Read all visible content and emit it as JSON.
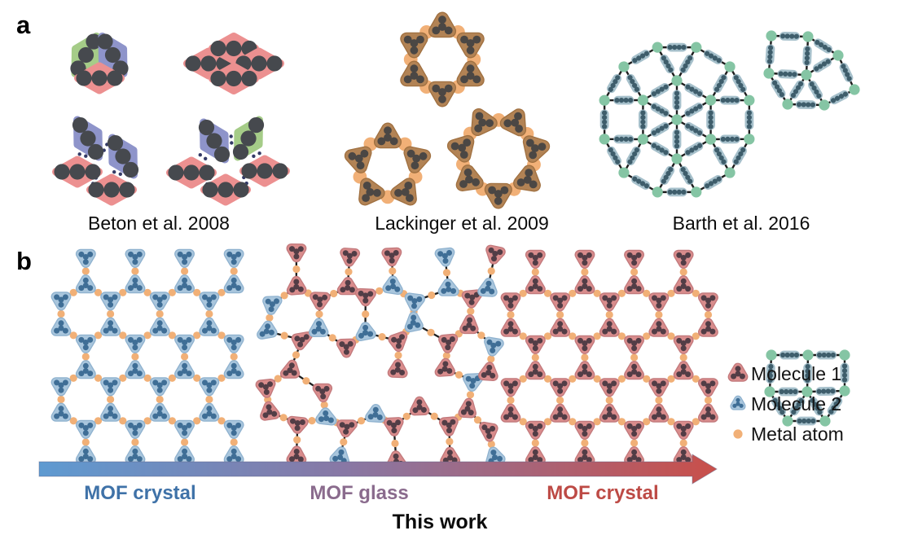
{
  "figure": {
    "panel_a_label": "a",
    "panel_b_label": "b",
    "captions": {
      "beton": "Beton et al. 2008",
      "lackinger": "Lackinger et al. 2009",
      "barth": "Barth et al. 2016"
    },
    "stages": {
      "left": "MOF crystal",
      "middle": "MOF glass",
      "right": "MOF crystal"
    },
    "bottom_label": "This work"
  },
  "legend": {
    "items": [
      {
        "icon": "molecule-1-icon",
        "label": "Molecule 1"
      },
      {
        "icon": "molecule-2-icon",
        "label": "Molecule 2"
      },
      {
        "icon": "metal-atom-icon",
        "label": "Metal atom"
      }
    ]
  },
  "colors": {
    "molecule1_fill": "#d98c8c",
    "molecule1_edge": "#c2797c",
    "molecule1_dot": "#523d46",
    "molecule2_fill": "#a9c6dd",
    "molecule2_edge": "#8fb2cf",
    "molecule2_dot": "#3f6e96",
    "metal_atom": "#f1b077",
    "bond": "#1c1c1c",
    "beton_pink": "#ec9090",
    "beton_blue": "#8e94ca",
    "beton_green": "#a5cc88",
    "beton_circle": "#46494e",
    "beton_link": "#333a66",
    "lackinger_fill": "#b28355",
    "lackinger_edge": "#a07040",
    "lackinger_dot": "#4b4744",
    "barth_node": "#85c5a4",
    "barth_pill": "#a6c0cb",
    "barth_pill_dot": "#3e5d6b",
    "arrow_start": "#5e9ad1",
    "arrow_mid": "#8878a5",
    "arrow_end": "#c94f4a",
    "stage_left": "#3f72a8",
    "stage_middle": "#8a6b8d",
    "stage_right": "#bd4a45"
  }
}
